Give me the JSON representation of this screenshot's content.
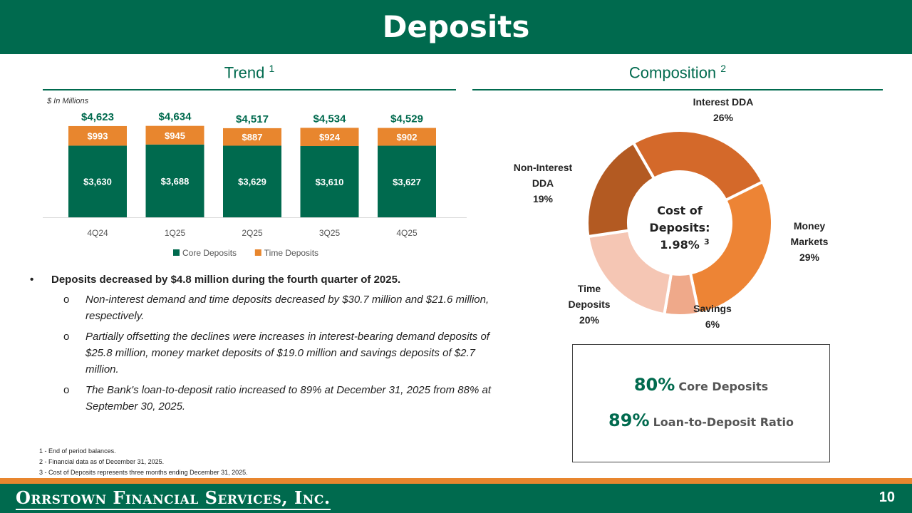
{
  "header": {
    "title": "Deposits"
  },
  "trend": {
    "title": "Trend",
    "sup": "1",
    "units": "$ In Millions"
  },
  "composition": {
    "title": "Composition",
    "sup": "2"
  },
  "chart_data": [
    {
      "type": "bar",
      "stacked": true,
      "categories": [
        "4Q24",
        "1Q25",
        "2Q25",
        "3Q25",
        "4Q25"
      ],
      "series": [
        {
          "name": "Core Deposits",
          "values": [
            3630,
            3688,
            3629,
            3610,
            3627
          ],
          "labels": [
            "$3,630",
            "$3,688",
            "$3,629",
            "$3,610",
            "$3,627"
          ],
          "color": "#006a4e"
        },
        {
          "name": "Time Deposits",
          "values": [
            993,
            945,
            887,
            924,
            902
          ],
          "labels": [
            "$993",
            "$945",
            "$887",
            "$924",
            "$902"
          ],
          "color": "#e8862e"
        }
      ],
      "totals": [
        "$4,623",
        "$4,634",
        "$4,517",
        "$4,534",
        "$4,529"
      ],
      "legend_position": "bottom"
    },
    {
      "type": "pie",
      "donut": true,
      "slices": [
        {
          "name": "Interest DDA",
          "value": 26,
          "label": "26%",
          "color": "#d4692a"
        },
        {
          "name": "Money Markets",
          "value": 29,
          "label": "29%",
          "color": "#ed8435"
        },
        {
          "name": "Savings",
          "value": 6,
          "label": "6%",
          "color": "#efa98a"
        },
        {
          "name": "Time Deposits",
          "value": 20,
          "label": "20%",
          "color": "#f5c6b4"
        },
        {
          "name": "Non-Interest DDA",
          "value": 19,
          "label": "19%",
          "color": "#b35a22"
        }
      ],
      "center_text": [
        "Cost of",
        "Deposits:",
        "1.98%"
      ],
      "center_sup": "3"
    }
  ],
  "donut_labels": [
    {
      "lines": [
        "Interest DDA",
        "26%"
      ]
    },
    {
      "lines": [
        "Money",
        "Markets",
        "29%"
      ]
    },
    {
      "lines": [
        "Savings",
        "6%"
      ]
    },
    {
      "lines": [
        "Time",
        "Deposits",
        "20%"
      ]
    },
    {
      "lines": [
        "Non-Interest",
        "DDA",
        "19%"
      ]
    }
  ],
  "bullets": {
    "main": "Deposits decreased by $4.8 million during the fourth quarter of 2025.",
    "sub": [
      "Non-interest demand and time deposits decreased by $30.7 million and $21.6 million, respectively.",
      "Partially offsetting the declines were increases in interest-bearing demand deposits of $25.8 million, money market deposits of $19.0 million and savings deposits of $2.7 million.",
      "The Bank's loan-to-deposit ratio increased to 89% at December 31, 2025 from 88% at September 30, 2025."
    ]
  },
  "kpis": [
    {
      "value": "80%",
      "label": "Core Deposits"
    },
    {
      "value": "89%",
      "label": "Loan-to-Deposit Ratio"
    }
  ],
  "footnotes": [
    "1 - End of period balances.",
    "2 - Financial data as of December 31, 2025.",
    "3 - Cost of Deposits represents three months ending December 31, 2025."
  ],
  "footer": {
    "logo": "Orrstown Financial Services, Inc.",
    "page": "10"
  }
}
